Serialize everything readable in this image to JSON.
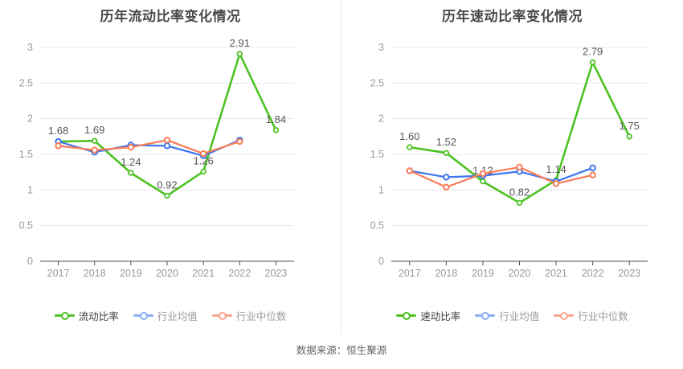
{
  "footer": {
    "source_text": "数据来源：恒生聚源"
  },
  "colors": {
    "background": "#ffffff",
    "gridline": "#e4e7f2",
    "axis_line": "#4d4d4d",
    "axis_label": "#999999",
    "data_label": "#555555",
    "title": "#4a4a4a",
    "panel_divider": "#ececec",
    "green_series": "#4cc222",
    "blue_series": "#3e76eb",
    "orange_series": "#f97c57",
    "legend_blue": "#8aaef2",
    "legend_orange": "#faa58b"
  },
  "chart_data": [
    {
      "type": "line",
      "title": "历年流动比率变化情况",
      "categories": [
        "2017",
        "2018",
        "2019",
        "2020",
        "2021",
        "2022",
        "2023"
      ],
      "y_ticks": [
        "0",
        "0.5",
        "1",
        "1.5",
        "2",
        "2.5",
        "3"
      ],
      "ylim": [
        0,
        3
      ],
      "grid": true,
      "legend_position": "bottom",
      "series": [
        {
          "name": "流动比率",
          "color": "#4cc222",
          "legend_color": "#4cc222",
          "show_labels": true,
          "values": [
            1.68,
            1.69,
            1.24,
            0.92,
            1.26,
            2.91,
            1.84
          ],
          "labels": [
            "1.68",
            "1.69",
            "1.24",
            "0.92",
            "1.26",
            "2.91",
            "1.84"
          ]
        },
        {
          "name": "行业均值",
          "color": "#3e76eb",
          "legend_color": "#8aaef2",
          "show_labels": false,
          "values": [
            1.68,
            1.53,
            1.63,
            1.62,
            1.48,
            1.7,
            null
          ],
          "labels": []
        },
        {
          "name": "行业中位数",
          "color": "#f97c57",
          "legend_color": "#faa58b",
          "show_labels": false,
          "values": [
            1.62,
            1.56,
            1.6,
            1.7,
            1.51,
            1.68,
            null
          ],
          "labels": []
        }
      ]
    },
    {
      "type": "line",
      "title": "历年速动比率变化情况",
      "categories": [
        "2017",
        "2018",
        "2019",
        "2020",
        "2021",
        "2022",
        "2023"
      ],
      "y_ticks": [
        "0",
        "0.5",
        "1",
        "1.5",
        "2",
        "2.5",
        "3"
      ],
      "ylim": [
        0,
        3
      ],
      "grid": true,
      "legend_position": "bottom",
      "series": [
        {
          "name": "速动比率",
          "color": "#4cc222",
          "legend_color": "#4cc222",
          "show_labels": true,
          "values": [
            1.6,
            1.52,
            1.12,
            0.82,
            1.14,
            2.79,
            1.75
          ],
          "labels": [
            "1.60",
            "1.52",
            "1.12",
            "0.82",
            "1.14",
            "2.79",
            "1.75"
          ]
        },
        {
          "name": "行业均值",
          "color": "#3e76eb",
          "legend_color": "#8aaef2",
          "show_labels": false,
          "values": [
            1.27,
            1.18,
            1.2,
            1.26,
            1.12,
            1.31,
            null
          ],
          "labels": []
        },
        {
          "name": "行业中位数",
          "color": "#f97c57",
          "legend_color": "#faa58b",
          "show_labels": false,
          "values": [
            1.27,
            1.04,
            1.23,
            1.32,
            1.09,
            1.21,
            null
          ],
          "labels": []
        }
      ]
    }
  ]
}
